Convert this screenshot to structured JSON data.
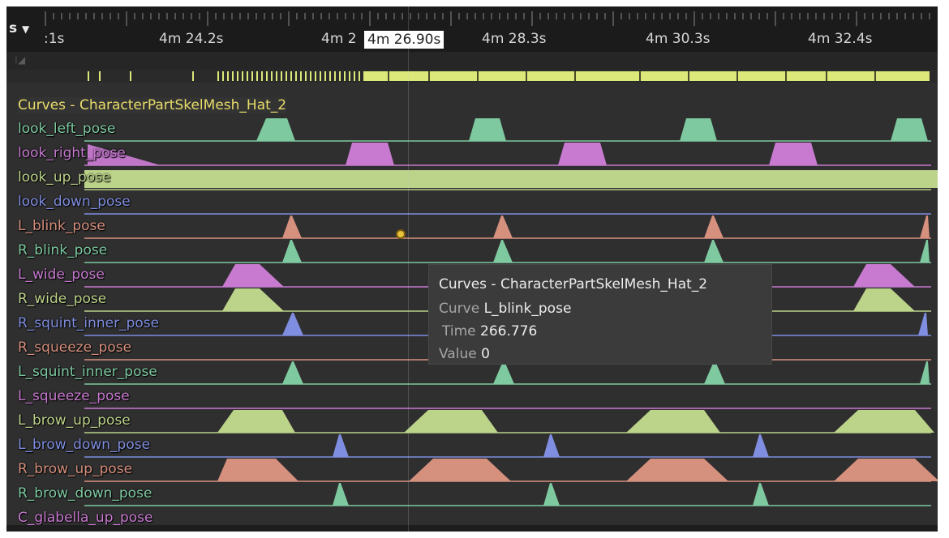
{
  "header": {
    "view_menu_label": "s",
    "time_labels": [
      ":1s",
      "4m 24.2s",
      "4m 2",
      "4m 28.3s",
      "4m 30.3s",
      "4m 32.4s"
    ],
    "scrub_time": "4m 26.90s"
  },
  "track": {
    "title": "Curves - CharacterPartSkelMesh_Hat_2",
    "curves": [
      {
        "name": "look_left_pose",
        "color": "#7ec9a0"
      },
      {
        "name": "look_right_pose",
        "color": "#c77ad0"
      },
      {
        "name": "look_up_pose",
        "color": "#bcd38a"
      },
      {
        "name": "look_down_pose",
        "color": "#7f8ee0"
      },
      {
        "name": "L_blink_pose",
        "color": "#d6907e"
      },
      {
        "name": "R_blink_pose",
        "color": "#7ec9a0"
      },
      {
        "name": "L_wide_pose",
        "color": "#c77ad0"
      },
      {
        "name": "R_wide_pose",
        "color": "#bcd38a"
      },
      {
        "name": "R_squint_inner_pose",
        "color": "#7f8ee0"
      },
      {
        "name": "R_squeeze_pose",
        "color": "#d6907e"
      },
      {
        "name": "L_squint_inner_pose",
        "color": "#7ec9a0"
      },
      {
        "name": "L_squeeze_pose",
        "color": "#c77ad0"
      },
      {
        "name": "L_brow_up_pose",
        "color": "#bcd38a"
      },
      {
        "name": "L_brow_down_pose",
        "color": "#7f8ee0"
      },
      {
        "name": "R_brow_up_pose",
        "color": "#d6907e"
      },
      {
        "name": "R_brow_down_pose",
        "color": "#7ec9a0"
      },
      {
        "name": "C_glabella_up_pose",
        "color": "#c77ad0"
      }
    ]
  },
  "tooltip": {
    "title": "Curves - CharacterPartSkelMesh_Hat_2",
    "curve_key": "Curve",
    "curve_value": "L_blink_pose",
    "time_key": "Time",
    "time_value": "266.776",
    "value_key": "Value",
    "value_value": "0"
  },
  "colors": {
    "background": "#2f2f2f",
    "ruler": "#1b1b1b",
    "events": "#dde87a",
    "title": "#e8dc6a"
  }
}
